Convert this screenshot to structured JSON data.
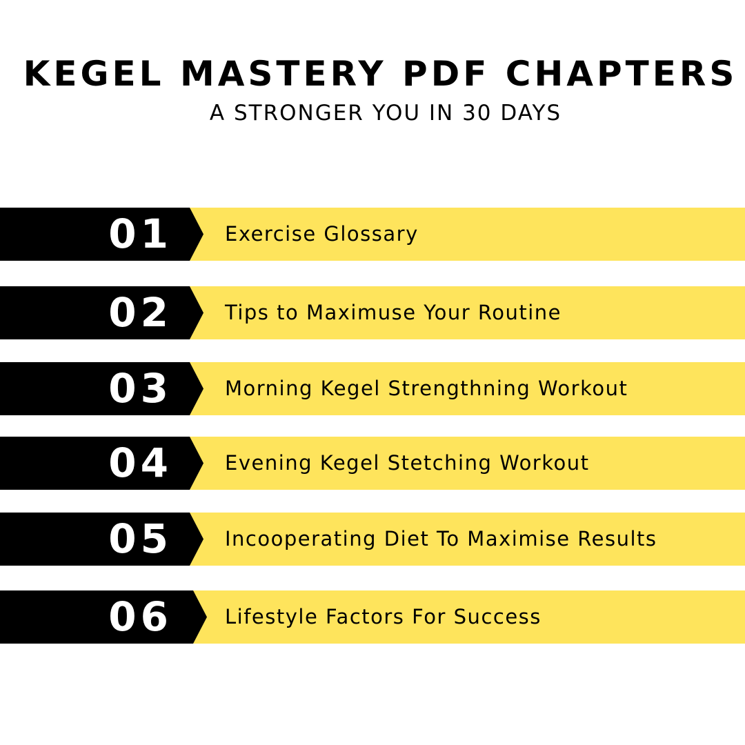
{
  "header": {
    "title": "KEGEL MASTERY PDF CHAPTERS",
    "subtitle": "A STRONGER YOU IN 30 DAYS"
  },
  "colors": {
    "accent": "#fee45c",
    "number_block": "#000000"
  },
  "chapters": [
    {
      "number": "01",
      "title": "Exercise Glossary"
    },
    {
      "number": "02",
      "title": "Tips to Maximuse Your Routine"
    },
    {
      "number": "03",
      "title": "Morning Kegel Strengthning Workout"
    },
    {
      "number": "04",
      "title": "Evening Kegel Stetching Workout"
    },
    {
      "number": "05",
      "title": "Incooperating Diet To Maximise Results"
    },
    {
      "number": "06",
      "title": "Lifestyle Factors For Success"
    }
  ]
}
